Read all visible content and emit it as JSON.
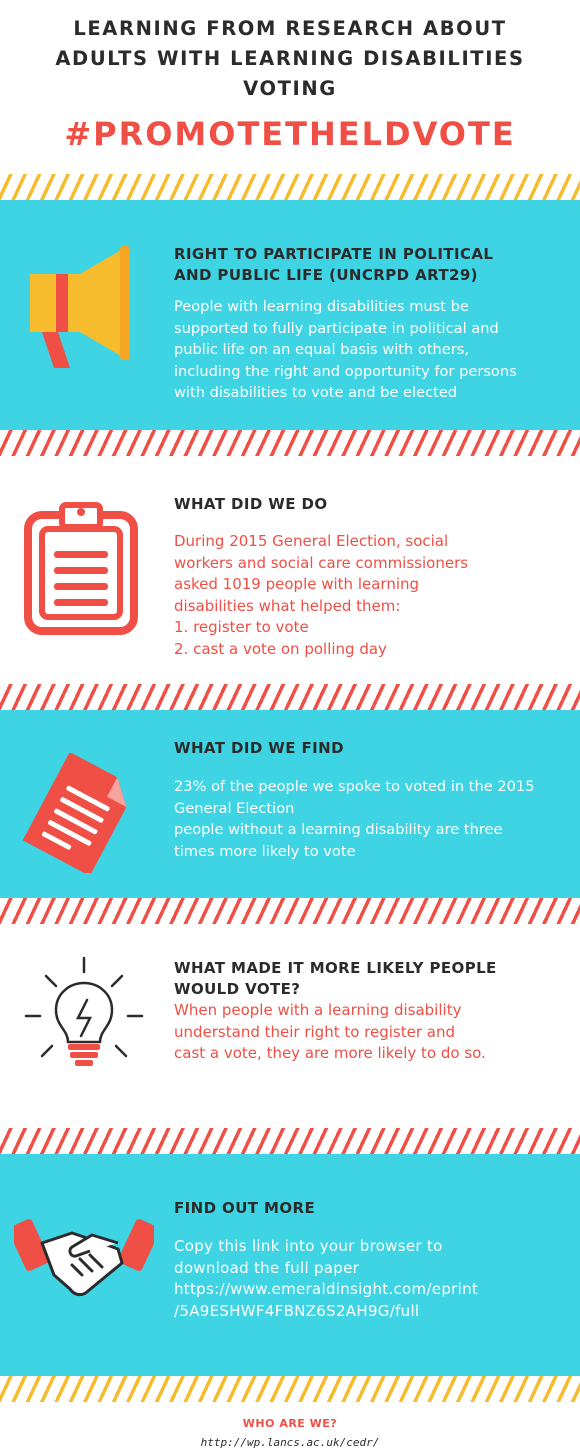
{
  "header": {
    "title_lines": [
      "LEARNING FROM RESEARCH ABOUT",
      "ADULTS WITH LEARNING DISABILITIES",
      "VOTING"
    ],
    "hashtag": "#PROMOTETHELDVOTE"
  },
  "colors": {
    "accent_red": "#ef4f45",
    "panel_cyan": "#3ed4e4",
    "stripe_yellow": "#f7bc2e",
    "stripe_red": "#ef4f45",
    "text_dark": "#2b2b2b"
  },
  "sections": [
    {
      "icon": "megaphone-icon",
      "heading_lines": [
        "RIGHT TO PARTICIPATE IN POLITICAL",
        "AND PUBLIC LIFE (UNCRPD ART29)"
      ],
      "body_lines": [
        "People with learning disabilities must be",
        "supported to fully participate in political and",
        "public life on an equal basis with others,",
        "including the right and opportunity for persons",
        "with disabilities to vote and be elected"
      ]
    },
    {
      "icon": "clipboard-icon",
      "heading_lines": [
        "WHAT DID WE DO"
      ],
      "body_lines": [
        "During 2015 General Election, social",
        "workers and social care commissioners",
        "asked 1019 people with learning",
        "disabilities what helped them:",
        "1. register to vote",
        "2. cast a vote on polling day"
      ]
    },
    {
      "icon": "document-icon",
      "heading_lines": [
        "WHAT DID WE FIND"
      ],
      "body_lines": [
        "23% of the people we spoke to voted in the 2015",
        "General Election",
        "people without a learning disability are three",
        "times more likely to vote"
      ]
    },
    {
      "icon": "lightbulb-icon",
      "heading_lines": [
        "WHAT MADE IT MORE LIKELY PEOPLE",
        "WOULD VOTE?"
      ],
      "body_lines": [
        "When people with a learning disability",
        "understand their right to register and",
        "cast a vote, they are more likely to do so."
      ]
    },
    {
      "icon": "handshake-icon",
      "heading_lines": [
        "FIND OUT MORE"
      ],
      "body_lines": [
        "Copy this link into your browser to",
        "download the full paper",
        "https://www.emeraldinsight.com/eprint",
        "/5A9ESHWF4FBNZ6S2AH9G/full"
      ]
    }
  ],
  "footer": {
    "question": "WHO ARE WE?",
    "url": "http://wp.lancs.ac.uk/cedr/"
  }
}
